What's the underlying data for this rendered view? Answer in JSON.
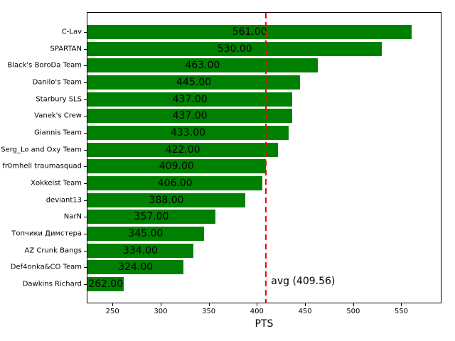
{
  "chart_data": {
    "type": "bar",
    "orientation": "horizontal",
    "title": "",
    "xlabel": "PTS",
    "ylabel": "",
    "categories": [
      "C-Lav",
      "SPARTAN",
      "Black's BoroDa Team",
      "Danilo's Team",
      "Starbury SLS",
      "Vanek's Crew",
      "Giannis Team",
      "Serg_Lo and Oxy Team",
      "fr0mhell traumasquad",
      "Xokkeist Team",
      "deviant13",
      "NarN",
      "Топчики Димстера",
      "AZ Crunk Bangs",
      "Def4onka&CO Team",
      "Dawkins Richard"
    ],
    "values": [
      561,
      530,
      463,
      445,
      437,
      437,
      433,
      422,
      409,
      406,
      388,
      357,
      345,
      334,
      324,
      262
    ],
    "value_labels": [
      "561.00",
      "530.00",
      "463.00",
      "445.00",
      "437.00",
      "437.00",
      "433.00",
      "422.00",
      "409.00",
      "406.00",
      "388.00",
      "357.00",
      "345.00",
      "334.00",
      "324.00",
      "262.00"
    ],
    "x_ticks": [
      250,
      300,
      350,
      400,
      450,
      500,
      550
    ],
    "xlim": [
      224,
      591
    ],
    "grid": false,
    "legend": null,
    "bar_color": "#008000",
    "avg_line": {
      "value": 409.56,
      "label": "avg (409.56)",
      "color": "#ff0000",
      "style": "dashed"
    }
  }
}
